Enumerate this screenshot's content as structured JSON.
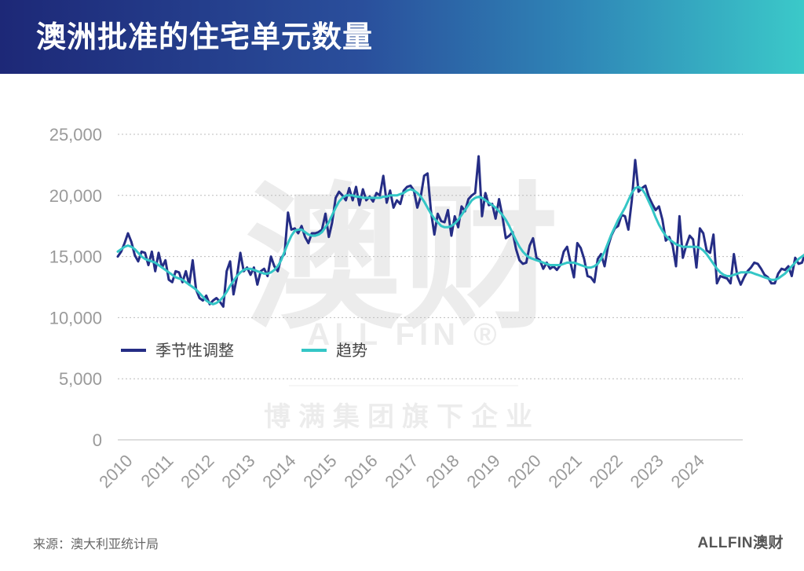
{
  "title": "澳洲批准的住宅单元数量",
  "source": "来源：澳大利亚统计局",
  "brand": "ALLFIN澳财",
  "watermark": {
    "main": "澳财",
    "sub": "ALL FIN ®",
    "group": "博满集团旗下企业"
  },
  "colors": {
    "series_sa": "#252d85",
    "series_trend": "#34c6c6",
    "grid": "#bcbcbc",
    "tick": "#9a9a9a"
  },
  "chart_data": {
    "type": "line",
    "title": "澳洲批准的住宅单元数量",
    "xlabel": "",
    "ylabel": "",
    "x_start": "2010-01",
    "x_frequency": "monthly",
    "xticks": [
      "2010",
      "2011",
      "2012",
      "2013",
      "2014",
      "2015",
      "2016",
      "2017",
      "2018",
      "2019",
      "2020",
      "2021",
      "2022",
      "2023",
      "2024"
    ],
    "yticks": [
      0,
      5000,
      10000,
      15000,
      20000,
      25000
    ],
    "ytick_labels": [
      "0",
      "5,000",
      "10,000",
      "15,000",
      "20,000",
      "25,000"
    ],
    "ylim": [
      0,
      25000
    ],
    "grid": true,
    "legend_position": "middle-left",
    "series": [
      {
        "name": "季节性调整",
        "values": [
          15000,
          15400,
          16100,
          16900,
          16200,
          15100,
          14600,
          15400,
          15300,
          14300,
          15400,
          13800,
          15300,
          14100,
          14700,
          13100,
          12900,
          13800,
          13700,
          12900,
          13800,
          12700,
          14700,
          12300,
          11600,
          11400,
          11800,
          11100,
          11400,
          11600,
          11300,
          10900,
          13800,
          14600,
          11900,
          13300,
          15300,
          13800,
          14100,
          13500,
          14100,
          12700,
          13800,
          14000,
          13400,
          15000,
          14200,
          13800,
          14900,
          15200,
          18600,
          17200,
          17300,
          16900,
          17500,
          16600,
          16100,
          16900,
          16900,
          17000,
          17200,
          18500,
          16600,
          17800,
          19800,
          20300,
          20000,
          19600,
          20600,
          19600,
          20700,
          19200,
          20500,
          19600,
          19900,
          19500,
          20200,
          20000,
          21600,
          19400,
          20400,
          19000,
          19600,
          19300,
          20400,
          20700,
          20800,
          20400,
          19000,
          19900,
          21600,
          21800,
          18700,
          16800,
          18500,
          17900,
          17800,
          18800,
          16700,
          18300,
          17400,
          19100,
          18700,
          19700,
          20000,
          20200,
          23200,
          18300,
          20200,
          19200,
          19300,
          18100,
          19700,
          18300,
          16500,
          16700,
          17000,
          15600,
          14700,
          14400,
          14500,
          15900,
          16500,
          14900,
          14700,
          14000,
          14500,
          14000,
          14200,
          13900,
          14300,
          15400,
          15800,
          14500,
          13300,
          16100,
          15700,
          14800,
          13400,
          13300,
          12900,
          14800,
          15200,
          14200,
          15800,
          16700,
          17300,
          17500,
          18400,
          18300,
          17200,
          19600,
          22900,
          20300,
          20600,
          20800,
          19900,
          19300,
          18800,
          19100,
          18000,
          16300,
          16600,
          15900,
          14200,
          18300,
          14900,
          15900,
          16700,
          16400,
          14100,
          17300,
          16900,
          15500,
          15300,
          16800,
          12800,
          13400,
          13300,
          13200,
          12800,
          15200,
          13400,
          12700,
          13300,
          13800,
          14100,
          14500,
          14400,
          14000,
          13500,
          13300,
          12800,
          12800,
          13600,
          14000,
          13900,
          14200,
          13400,
          14900,
          14400,
          14500,
          15300,
          15800,
          15600,
          15700,
          16500
        ]
      },
      {
        "name": "趋势",
        "values": [
          15400,
          15600,
          15800,
          15900,
          15800,
          15600,
          15300,
          15000,
          14800,
          14700,
          14600,
          14500,
          14300,
          14100,
          13900,
          13700,
          13500,
          13300,
          13200,
          13100,
          12900,
          12700,
          12500,
          12300,
          12000,
          11700,
          11400,
          11200,
          11100,
          11200,
          11400,
          11700,
          12100,
          12600,
          13000,
          13400,
          13700,
          13900,
          14000,
          14000,
          13900,
          13800,
          13700,
          13600,
          13600,
          13700,
          13900,
          14200,
          14700,
          15400,
          16100,
          16700,
          17100,
          17200,
          17200,
          17000,
          16800,
          16700,
          16700,
          16800,
          17000,
          17400,
          17800,
          18400,
          19000,
          19500,
          19800,
          20000,
          20000,
          20000,
          19900,
          19900,
          19800,
          19800,
          19800,
          19800,
          19800,
          19800,
          19900,
          19900,
          20000,
          20000,
          20000,
          20100,
          20200,
          20400,
          20500,
          20400,
          20200,
          19900,
          19500,
          19000,
          18500,
          18100,
          17800,
          17500,
          17400,
          17400,
          17500,
          17700,
          18000,
          18400,
          18800,
          19200,
          19600,
          19800,
          19900,
          19800,
          19600,
          19400,
          19200,
          19000,
          18700,
          18400,
          18000,
          17500,
          16900,
          16300,
          15800,
          15400,
          15100,
          14900,
          14800,
          14700,
          14600,
          14500,
          14400,
          14300,
          14300,
          14300,
          14300,
          14400,
          14500,
          14500,
          14500,
          14400,
          14300,
          14200,
          14100,
          14100,
          14200,
          14400,
          14800,
          15400,
          16100,
          16800,
          17400,
          18000,
          18500,
          19000,
          19600,
          20200,
          20600,
          20700,
          20500,
          20100,
          19500,
          18900,
          18200,
          17600,
          17100,
          16700,
          16400,
          16200,
          16000,
          15900,
          15800,
          15800,
          15800,
          15800,
          15800,
          15700,
          15500,
          15200,
          14800,
          14400,
          14000,
          13700,
          13500,
          13400,
          13400,
          13500,
          13600,
          13700,
          13700,
          13700,
          13700,
          13600,
          13500,
          13400,
          13300,
          13200,
          13100,
          13100,
          13200,
          13400,
          13600,
          13900,
          14200,
          14500,
          14800,
          15000,
          15200,
          15300,
          15300,
          15200,
          15200
        ]
      }
    ]
  }
}
